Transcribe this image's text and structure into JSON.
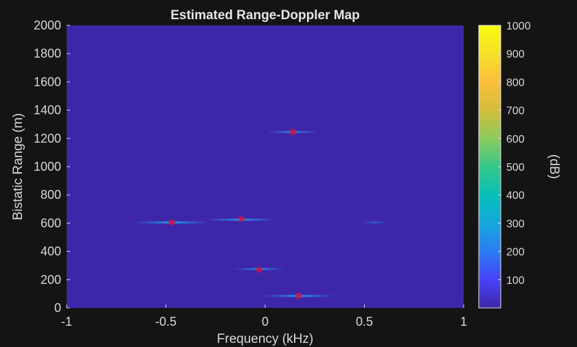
{
  "chart_data": {
    "type": "heatmap",
    "title": "Estimated Range-Doppler Map",
    "xlabel": "Frequency (kHz)",
    "ylabel": "Bistatic Range (m)",
    "xlim": [
      -1,
      1
    ],
    "ylim": [
      0,
      2000
    ],
    "xticks": [
      -1,
      -0.5,
      0,
      0.5,
      1
    ],
    "xtick_labels": [
      "-1",
      "-0.5",
      "0",
      "0.5",
      "1"
    ],
    "yticks": [
      0,
      200,
      400,
      600,
      800,
      1000,
      1200,
      1400,
      1600,
      1800,
      2000
    ],
    "ytick_labels": [
      "0",
      "200",
      "400",
      "600",
      "800",
      "1000",
      "1200",
      "1400",
      "1600",
      "1800",
      "2000"
    ],
    "background_color": "#3e26a8",
    "grid": false,
    "colorbar": {
      "label": "(dB)",
      "range": [
        0,
        1000
      ],
      "ticks": [
        100,
        200,
        300,
        400,
        500,
        600,
        700,
        800,
        900,
        1000
      ],
      "tick_labels": [
        "100",
        "200",
        "300",
        "400",
        "500",
        "600",
        "700",
        "800",
        "900",
        "1000"
      ],
      "colormap": "parula",
      "colors": [
        "#3e26a8",
        "#4743f8",
        "#2c7cf1",
        "#16a8dc",
        "#07bfb8",
        "#36c88a",
        "#8cca5d",
        "#d3bd3c",
        "#fbbe3c",
        "#f5e02a",
        "#f9fb0e"
      ]
    },
    "streaks": [
      {
        "freq": 0.14,
        "range": 1245,
        "half_width": 0.13,
        "intensity": 260
      },
      {
        "freq": -0.12,
        "range": 625,
        "half_width": 0.18,
        "intensity": 300
      },
      {
        "freq": -0.47,
        "range": 605,
        "half_width": 0.19,
        "intensity": 340
      },
      {
        "freq": 0.55,
        "range": 605,
        "half_width": 0.07,
        "intensity": 140
      },
      {
        "freq": -0.03,
        "range": 275,
        "half_width": 0.13,
        "intensity": 240
      },
      {
        "freq": 0.17,
        "range": 85,
        "half_width": 0.18,
        "intensity": 320
      }
    ],
    "markers": {
      "symbol": "*",
      "color": "#e0103a",
      "points": [
        {
          "freq": 0.14,
          "range": 1245
        },
        {
          "freq": -0.12,
          "range": 630
        },
        {
          "freq": -0.47,
          "range": 605
        },
        {
          "freq": -0.03,
          "range": 270
        },
        {
          "freq": 0.17,
          "range": 85
        }
      ]
    }
  }
}
